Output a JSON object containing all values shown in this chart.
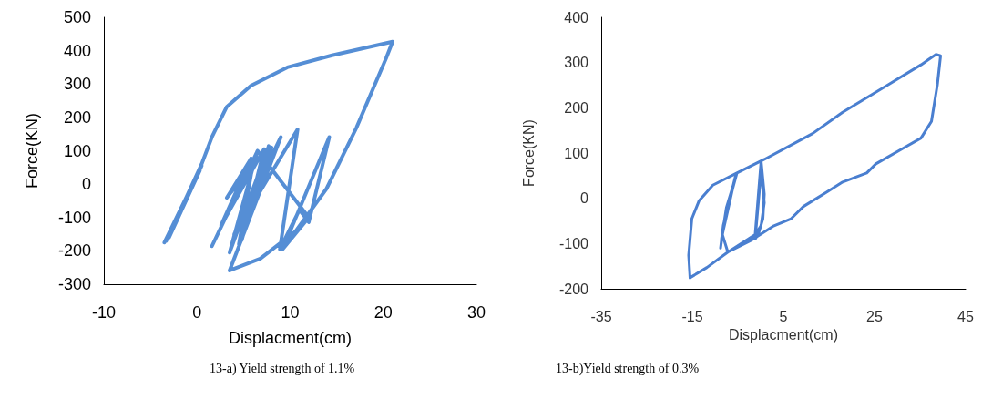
{
  "chart_data": [
    {
      "type": "line",
      "xlabel": "Displacment(cm)",
      "ylabel": "Force(KN)",
      "color": "#558ed5",
      "marker": "none",
      "line_style": "solid",
      "xlim": [
        -10,
        30
      ],
      "ylim": [
        -300,
        500
      ],
      "xticks": [
        -10,
        0,
        10,
        20,
        30
      ],
      "yticks": [
        -300,
        -200,
        -100,
        0,
        100,
        200,
        300,
        400,
        500
      ],
      "annotations": [
        "13-a) Yield strength of 1.1%"
      ],
      "x": [
        -3.5,
        0.5,
        -3.0,
        0.3,
        -3.3,
        0.5,
        1.6,
        3.2,
        5.8,
        9.7,
        14.5,
        21.0,
        20.3,
        17.1,
        13.9,
        10.6,
        6.8,
        3.5,
        9.0,
        4.0,
        10.8,
        8.9,
        11.0,
        12.0,
        14.2,
        9.2,
        12.0,
        6.5,
        1.6,
        6.5,
        3.5,
        7.7,
        4.8,
        7.2,
        2.6,
        5.8,
        3.2,
        6.0,
        4.5,
        8.0,
        5.0,
        9.0,
        4.2
      ],
      "values": [
        -175,
        55,
        -160,
        40,
        -170,
        60,
        141,
        232,
        295,
        350,
        386,
        427,
        377,
        168,
        -14,
        -141,
        -223,
        -259,
        141,
        -150,
        164,
        -195,
        -77,
        -114,
        141,
        -195,
        -100,
        100,
        -186,
        100,
        -205,
        114,
        -168,
        105,
        -123,
        77,
        -41,
        60,
        -180,
        110,
        -150,
        141,
        -140
      ]
    },
    {
      "type": "line",
      "xlabel": "Displacment(cm)",
      "ylabel": "Force(KN)",
      "color": "#4a7fd0",
      "marker": "none",
      "line_style": "solid",
      "xlim": [
        -35,
        45
      ],
      "ylim": [
        -200,
        400
      ],
      "xticks": [
        -35,
        -15,
        5,
        25,
        45
      ],
      "yticks": [
        -200,
        -100,
        0,
        100,
        200,
        300,
        400
      ],
      "annotations": [
        "13-b)Yield strength of 0.3%"
      ],
      "x": [
        -8.6,
        -7.5,
        -5.2,
        -7.8,
        -8.8,
        -8.2,
        -5.5,
        -8.4,
        -7.2,
        -1.2,
        0.1,
        0.8,
        0.5,
        -0.5,
        -1.2,
        0.1,
        0.8,
        0.1,
        -1.5,
        -7.2,
        -11.8,
        -15.1,
        -15.5,
        -15.8,
        -15.1,
        -13.5,
        -10.5,
        -5.2,
        0.8,
        11.4,
        18.0,
        28.0,
        35.2,
        38.5,
        39.5,
        38.8,
        37.5,
        35.2,
        31.2,
        25.3,
        23.3,
        18.0,
        14.7,
        9.4,
        6.7,
        2.7,
        -1.9,
        -7.2
      ],
      "values": [
        -90,
        -20,
        56,
        -40,
        -110,
        -60,
        50,
        -80,
        -119,
        -80,
        83,
        9,
        -45,
        -79,
        -90,
        60,
        -10,
        -60,
        -85,
        -119,
        -153,
        -173,
        -176,
        -126,
        -45,
        -5,
        29,
        56,
        86,
        143,
        190,
        251,
        295,
        318,
        315,
        251,
        170,
        133,
        110,
        76,
        56,
        36,
        15,
        -18,
        -45,
        -62,
        -92,
        -119
      ]
    }
  ]
}
